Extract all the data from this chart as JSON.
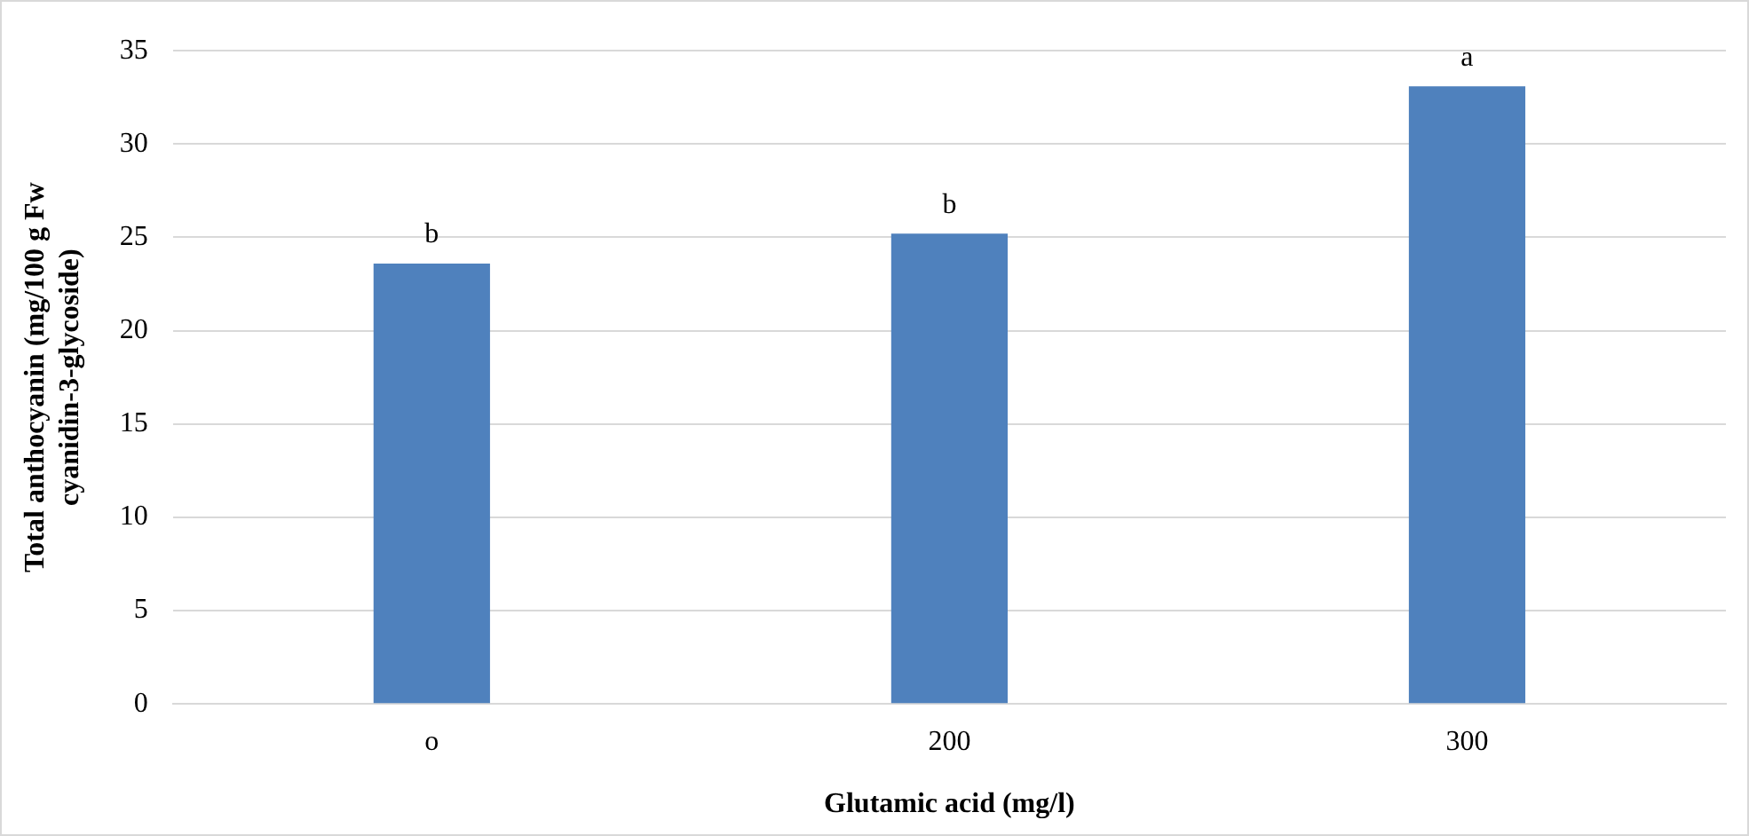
{
  "chart_data": {
    "type": "bar",
    "xlabel": "Glutamic acid (mg/l)",
    "ylabel": "Total anthocyanin (mg/100 g Fw cyanidin-3-glycoside)",
    "categories": [
      "o",
      "200",
      "300"
    ],
    "values": [
      23.6,
      25.2,
      33.1
    ],
    "color": "#4f81bd",
    "ylim": [
      0,
      35
    ],
    "yticks": [
      0,
      5,
      10,
      15,
      20,
      25,
      30,
      35
    ],
    "grid": "y",
    "legend": false,
    "annotations": [
      {
        "text": "b",
        "x": "o",
        "y": 23.6
      },
      {
        "text": "b",
        "x": "200",
        "y": 25.2
      },
      {
        "text": "a",
        "x": "300",
        "y": 33.1
      }
    ]
  }
}
